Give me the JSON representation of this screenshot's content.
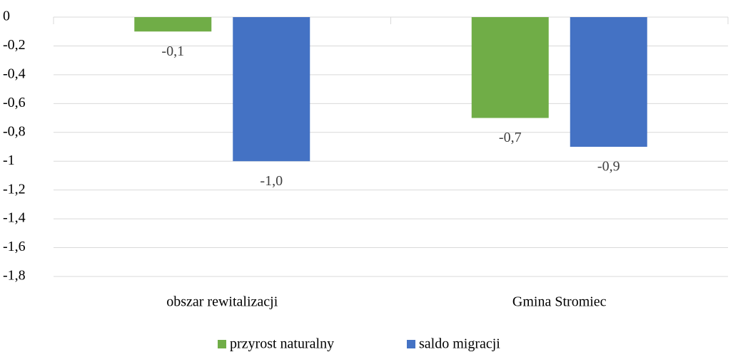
{
  "chart_data": {
    "type": "bar",
    "categories": [
      "obszar rewitalizacji",
      "Gmina Stromiec"
    ],
    "series": [
      {
        "name": "przyrost naturalny",
        "color": "#70ad47",
        "values": [
          -0.1,
          -0.7
        ],
        "value_labels": [
          "-0,1",
          "-0,7"
        ]
      },
      {
        "name": "saldo migracji",
        "color": "#4472c4",
        "values": [
          -1.0,
          -0.9
        ],
        "value_labels": [
          "-1,0",
          "-0,9"
        ]
      }
    ],
    "ylim": [
      -1.8,
      0
    ],
    "yticks": [
      0,
      {
        "value": -0.2,
        "label": "-0,2"
      },
      {
        "value": -0.4,
        "label": "-0,4"
      },
      {
        "value": -0.6,
        "label": "-0,6"
      },
      {
        "value": -0.8,
        "label": "-0,8"
      },
      -1,
      {
        "value": -1.2,
        "label": "-1,2"
      },
      {
        "value": -1.4,
        "label": "-1,4"
      },
      {
        "value": -1.6,
        "label": "-1,6"
      },
      {
        "value": -1.8,
        "label": "-1,8"
      }
    ],
    "grid": true,
    "legend": "bottom"
  }
}
